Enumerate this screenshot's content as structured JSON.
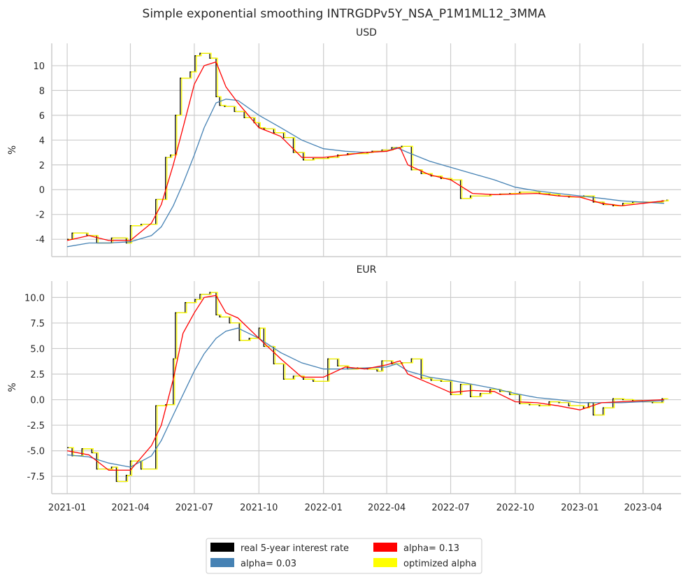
{
  "title": "Simple exponential smoothing INTRGDPv5Y_NSA_P1M1ML12_3MMA",
  "colors": {
    "real": "#000000",
    "alpha_low": "#4682b4",
    "alpha_mid": "#ff0000",
    "optimized": "#ffff00",
    "grid": "#cccccc"
  },
  "legend": [
    {
      "label": "real 5-year interest rate",
      "color": "#000000"
    },
    {
      "label": "alpha= 0.13",
      "color": "#ff0000"
    },
    {
      "label": "alpha= 0.03",
      "color": "#4682b4"
    },
    {
      "label": "optimized alpha",
      "color": "#ffff00"
    }
  ],
  "chart_data": [
    {
      "type": "line",
      "panel_title": "USD",
      "ylabel": "%",
      "xticks": [
        "2021-01",
        "2021-04",
        "2021-07",
        "2021-10",
        "2022-01",
        "2022-04",
        "2022-07",
        "2022-10",
        "2023-01",
        "2023-04"
      ],
      "xticks_dates": [
        "2021-01-01",
        "2021-04-01",
        "2021-07-01",
        "2021-10-01",
        "2022-01-01",
        "2022-04-01",
        "2022-07-01",
        "2022-10-01",
        "2023-01-01",
        "2023-04-01"
      ],
      "x_range": [
        "2020-12-10",
        "2023-05-25"
      ],
      "yticks": [
        -4,
        -2,
        0,
        2,
        4,
        6,
        8,
        10
      ],
      "ylim": [
        -5.4,
        11.8
      ],
      "grid": true,
      "steps_x": [
        "2021-01-01",
        "2021-01-08",
        "2021-01-29",
        "2021-02-12",
        "2021-03-05",
        "2021-03-26",
        "2021-04-01",
        "2021-04-16",
        "2021-05-07",
        "2021-05-21",
        "2021-05-28",
        "2021-06-04",
        "2021-06-11",
        "2021-06-25",
        "2021-07-02",
        "2021-07-09",
        "2021-07-23",
        "2021-08-01",
        "2021-08-06",
        "2021-08-13",
        "2021-08-27",
        "2021-09-10",
        "2021-09-24",
        "2021-10-01",
        "2021-10-08",
        "2021-10-22",
        "2021-11-05",
        "2021-11-19",
        "2021-12-03",
        "2021-12-17",
        "2022-01-07",
        "2022-01-21",
        "2022-02-04",
        "2022-02-18",
        "2022-03-04",
        "2022-03-11",
        "2022-03-25",
        "2022-04-08",
        "2022-04-22",
        "2022-05-06",
        "2022-05-20",
        "2022-06-03",
        "2022-06-17",
        "2022-07-01",
        "2022-07-15",
        "2022-07-29",
        "2022-08-12",
        "2022-08-26",
        "2022-09-09",
        "2022-09-23",
        "2022-10-07",
        "2022-10-21",
        "2022-11-04",
        "2022-11-18",
        "2022-12-02",
        "2022-12-16",
        "2023-01-06",
        "2023-01-20",
        "2023-02-03",
        "2023-02-17",
        "2023-03-03",
        "2023-03-17",
        "2023-03-31",
        "2023-04-14",
        "2023-04-28",
        "2023-05-05"
      ],
      "steps_real": [
        -4.0,
        -3.5,
        -3.7,
        -4.3,
        -3.9,
        -4.3,
        -2.9,
        -2.8,
        -0.8,
        2.6,
        2.8,
        6.0,
        9.0,
        9.5,
        10.8,
        11.0,
        10.6,
        7.5,
        6.8,
        6.7,
        6.3,
        5.8,
        5.4,
        5.0,
        4.9,
        4.6,
        4.2,
        3.0,
        2.4,
        2.5,
        2.6,
        2.8,
        2.9,
        2.9,
        3.0,
        3.1,
        3.2,
        3.4,
        3.5,
        1.6,
        1.3,
        1.1,
        0.9,
        0.8,
        -0.7,
        -0.5,
        -0.5,
        -0.4,
        -0.35,
        -0.3,
        -0.2,
        -0.2,
        -0.3,
        -0.4,
        -0.5,
        -0.6,
        -0.5,
        -1.0,
        -1.2,
        -1.3,
        -1.1,
        -1.0,
        -1.0,
        -1.0,
        -0.9,
        -0.8
      ],
      "series": [
        {
          "name": "alpha= 0.03",
          "x": [
            "2021-01-01",
            "2021-02-01",
            "2021-03-01",
            "2021-04-01",
            "2021-05-01",
            "2021-05-15",
            "2021-06-01",
            "2021-06-15",
            "2021-07-01",
            "2021-07-15",
            "2021-08-01",
            "2021-08-15",
            "2021-09-01",
            "2021-10-01",
            "2021-11-01",
            "2021-12-01",
            "2022-01-01",
            "2022-02-01",
            "2022-03-01",
            "2022-04-01",
            "2022-04-15",
            "2022-05-01",
            "2022-06-01",
            "2022-07-01",
            "2022-08-01",
            "2022-09-01",
            "2022-10-01",
            "2022-11-01",
            "2022-12-01",
            "2023-01-01",
            "2023-02-01",
            "2023-03-01",
            "2023-04-01",
            "2023-05-01"
          ],
          "y": [
            -4.6,
            -4.3,
            -4.3,
            -4.2,
            -3.7,
            -3.0,
            -1.3,
            0.5,
            2.8,
            5.0,
            7.0,
            7.3,
            7.2,
            6.0,
            5.0,
            4.0,
            3.3,
            3.1,
            3.0,
            3.1,
            3.4,
            3.0,
            2.3,
            1.8,
            1.3,
            0.8,
            0.2,
            -0.1,
            -0.3,
            -0.5,
            -0.7,
            -0.9,
            -1.0,
            -1.1
          ]
        },
        {
          "name": "alpha= 0.13",
          "x": [
            "2021-01-01",
            "2021-02-01",
            "2021-03-01",
            "2021-04-01",
            "2021-05-01",
            "2021-05-15",
            "2021-06-01",
            "2021-06-15",
            "2021-07-01",
            "2021-07-15",
            "2021-08-01",
            "2021-08-15",
            "2021-09-01",
            "2021-10-01",
            "2021-11-01",
            "2021-12-01",
            "2022-01-01",
            "2022-02-01",
            "2022-03-01",
            "2022-04-01",
            "2022-04-20",
            "2022-05-01",
            "2022-06-01",
            "2022-07-01",
            "2022-08-01",
            "2022-09-01",
            "2022-10-01",
            "2022-11-01",
            "2022-12-01",
            "2023-01-01",
            "2023-02-01",
            "2023-03-01",
            "2023-04-01",
            "2023-05-01"
          ],
          "y": [
            -4.1,
            -3.7,
            -4.1,
            -4.1,
            -2.7,
            -1.2,
            2.0,
            5.0,
            8.5,
            10.0,
            10.3,
            8.3,
            7.0,
            5.0,
            4.3,
            2.6,
            2.6,
            2.8,
            3.0,
            3.1,
            3.4,
            2.0,
            1.2,
            0.8,
            -0.3,
            -0.4,
            -0.35,
            -0.3,
            -0.5,
            -0.6,
            -1.1,
            -1.3,
            -1.1,
            -0.9
          ]
        }
      ]
    },
    {
      "type": "line",
      "panel_title": "EUR",
      "ylabel": "%",
      "xticks": [
        "2021-01",
        "2021-04",
        "2021-07",
        "2021-10",
        "2022-01",
        "2022-04",
        "2022-07",
        "2022-10",
        "2023-01",
        "2023-04"
      ],
      "xticks_dates": [
        "2021-01-01",
        "2021-04-01",
        "2021-07-01",
        "2021-10-01",
        "2022-01-01",
        "2022-04-01",
        "2022-07-01",
        "2022-10-01",
        "2023-01-01",
        "2023-04-01"
      ],
      "x_range": [
        "2020-12-10",
        "2023-05-25"
      ],
      "yticks": [
        -7.5,
        -5.0,
        -2.5,
        0.0,
        2.5,
        5.0,
        7.5,
        10.0
      ],
      "ylim": [
        -9.2,
        11.6
      ],
      "grid": true,
      "steps_x": [
        "2021-01-01",
        "2021-01-08",
        "2021-01-22",
        "2021-02-05",
        "2021-02-12",
        "2021-03-05",
        "2021-03-12",
        "2021-03-26",
        "2021-04-01",
        "2021-04-16",
        "2021-05-07",
        "2021-05-21",
        "2021-06-01",
        "2021-06-04",
        "2021-06-18",
        "2021-07-02",
        "2021-07-09",
        "2021-07-23",
        "2021-08-01",
        "2021-08-06",
        "2021-08-20",
        "2021-09-03",
        "2021-09-17",
        "2021-10-01",
        "2021-10-08",
        "2021-10-22",
        "2021-11-05",
        "2021-11-19",
        "2021-12-03",
        "2021-12-17",
        "2022-01-07",
        "2022-01-21",
        "2022-02-04",
        "2022-02-18",
        "2022-03-04",
        "2022-03-18",
        "2022-03-25",
        "2022-04-08",
        "2022-04-22",
        "2022-05-06",
        "2022-05-20",
        "2022-06-03",
        "2022-06-17",
        "2022-07-01",
        "2022-07-15",
        "2022-07-29",
        "2022-08-12",
        "2022-08-26",
        "2022-09-09",
        "2022-09-23",
        "2022-10-07",
        "2022-10-21",
        "2022-11-04",
        "2022-11-18",
        "2022-12-02",
        "2022-12-16",
        "2023-01-06",
        "2023-01-13",
        "2023-01-20",
        "2023-02-03",
        "2023-02-17",
        "2023-03-03",
        "2023-03-17",
        "2023-03-31",
        "2023-04-14",
        "2023-04-28",
        "2023-05-05"
      ],
      "steps_real": [
        -4.7,
        -5.5,
        -4.8,
        -5.2,
        -6.8,
        -6.6,
        -8.0,
        -7.4,
        -6.0,
        -6.8,
        -0.6,
        -0.5,
        4.0,
        8.5,
        9.5,
        9.8,
        10.3,
        10.5,
        8.3,
        8.1,
        7.5,
        5.8,
        6.0,
        7.0,
        5.2,
        3.5,
        2.0,
        2.3,
        2.0,
        1.8,
        4.0,
        3.3,
        3.0,
        3.1,
        3.0,
        2.8,
        3.8,
        3.5,
        3.6,
        4.0,
        2.1,
        1.9,
        1.8,
        0.5,
        1.5,
        0.3,
        0.6,
        1.0,
        0.8,
        0.5,
        -0.4,
        -0.5,
        -0.6,
        -0.2,
        -0.3,
        -0.6,
        -0.8,
        -0.3,
        -1.5,
        -0.8,
        0.1,
        0.0,
        -0.1,
        -0.2,
        -0.3,
        0.1,
        0.1
      ],
      "series": [
        {
          "name": "alpha= 0.03",
          "x": [
            "2021-01-01",
            "2021-02-01",
            "2021-03-01",
            "2021-04-01",
            "2021-05-01",
            "2021-05-15",
            "2021-06-01",
            "2021-06-15",
            "2021-07-01",
            "2021-07-15",
            "2021-08-01",
            "2021-08-15",
            "2021-09-01",
            "2021-10-01",
            "2021-11-01",
            "2021-12-01",
            "2022-01-01",
            "2022-02-01",
            "2022-03-01",
            "2022-04-01",
            "2022-04-15",
            "2022-05-01",
            "2022-06-01",
            "2022-07-01",
            "2022-08-01",
            "2022-09-01",
            "2022-10-01",
            "2022-11-01",
            "2022-12-01",
            "2023-01-01",
            "2023-02-01",
            "2023-03-01",
            "2023-04-01",
            "2023-05-01"
          ],
          "y": [
            -5.4,
            -5.6,
            -6.2,
            -6.6,
            -5.5,
            -4.0,
            -1.5,
            0.5,
            2.8,
            4.5,
            6.0,
            6.7,
            7.0,
            6.0,
            4.6,
            3.6,
            3.0,
            3.0,
            3.1,
            3.2,
            3.5,
            2.8,
            2.2,
            1.9,
            1.5,
            1.1,
            0.6,
            0.2,
            0.0,
            -0.3,
            -0.3,
            -0.3,
            -0.2,
            -0.1
          ]
        },
        {
          "name": "alpha= 0.13",
          "x": [
            "2021-01-01",
            "2021-02-01",
            "2021-03-01",
            "2021-04-01",
            "2021-05-01",
            "2021-05-15",
            "2021-06-01",
            "2021-06-15",
            "2021-07-01",
            "2021-07-15",
            "2021-08-01",
            "2021-08-15",
            "2021-09-01",
            "2021-10-01",
            "2021-11-01",
            "2021-12-01",
            "2022-01-01",
            "2022-02-01",
            "2022-03-01",
            "2022-04-01",
            "2022-04-20",
            "2022-05-01",
            "2022-06-01",
            "2022-07-01",
            "2022-08-01",
            "2022-09-01",
            "2022-10-01",
            "2022-11-01",
            "2022-12-01",
            "2023-01-01",
            "2023-02-01",
            "2023-03-01",
            "2023-04-01",
            "2023-05-01"
          ],
          "y": [
            -5.0,
            -5.4,
            -6.9,
            -6.9,
            -4.5,
            -2.5,
            2.0,
            6.5,
            8.5,
            10.0,
            10.2,
            8.5,
            8.0,
            6.0,
            4.0,
            2.2,
            2.2,
            3.2,
            3.0,
            3.4,
            3.8,
            2.5,
            1.6,
            0.7,
            0.9,
            0.8,
            -0.2,
            -0.3,
            -0.6,
            -1.0,
            -0.3,
            -0.2,
            -0.1,
            0.0
          ]
        }
      ]
    }
  ]
}
